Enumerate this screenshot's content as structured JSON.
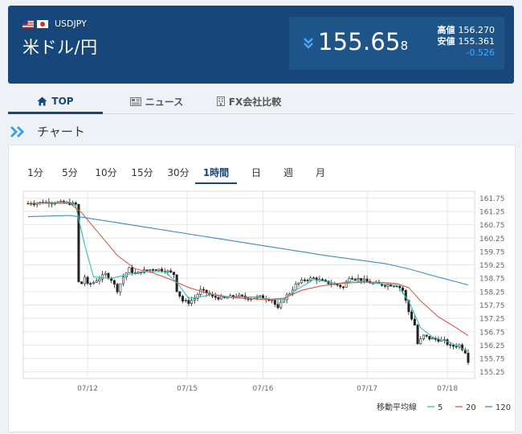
{
  "header": {
    "pair_code": "USDJPY",
    "pair_name": "米ドル/円",
    "price_main": "155.65",
    "price_small": "8",
    "high_label": "高値",
    "high_value": "156.270",
    "low_label": "安値",
    "low_value": "155.361",
    "change": "-0.526",
    "change_color": "#46a8ff",
    "brand_color": "#16467a"
  },
  "nav": {
    "items": [
      {
        "label": "TOP",
        "icon": "home-icon"
      },
      {
        "label": "ニュース",
        "icon": "newspaper-icon"
      },
      {
        "label": "FX会社比較",
        "icon": "building-icon"
      }
    ],
    "active": 0
  },
  "section": {
    "title": "チャート",
    "icon": "double-chevron-icon"
  },
  "tabs": {
    "items": [
      "1分",
      "5分",
      "10分",
      "15分",
      "30分",
      "1時間",
      "日",
      "週",
      "月"
    ],
    "active": 5
  },
  "chart_data": {
    "type": "candlestick",
    "x_labels": [
      "07/12",
      "07/15",
      "07/16",
      "07/17",
      "07/18"
    ],
    "y_ticks": [
      155.25,
      155.75,
      156.25,
      156.75,
      157.25,
      157.75,
      158.25,
      158.75,
      159.25,
      159.75,
      160.25,
      160.75,
      161.25,
      161.75
    ],
    "ylim": [
      155.0,
      162.0
    ],
    "grid": true,
    "close_path": [
      [
        0,
        161.55
      ],
      [
        8,
        161.6
      ],
      [
        14,
        161.55
      ],
      [
        16,
        161.5
      ],
      [
        17,
        158.6
      ],
      [
        18,
        158.55
      ],
      [
        19,
        158.8
      ],
      [
        20,
        158.5
      ],
      [
        22,
        158.6
      ],
      [
        26,
        158.9
      ],
      [
        28,
        158.7
      ],
      [
        30,
        158.3
      ],
      [
        32,
        158.8
      ],
      [
        34,
        159.1
      ],
      [
        36,
        158.9
      ],
      [
        38,
        159.0
      ],
      [
        42,
        159.1
      ],
      [
        46,
        159.05
      ],
      [
        49,
        158.9
      ],
      [
        50,
        158.3
      ],
      [
        52,
        157.9
      ],
      [
        54,
        157.85
      ],
      [
        56,
        158.0
      ],
      [
        58,
        158.3
      ],
      [
        60,
        158.2
      ],
      [
        62,
        158.05
      ],
      [
        66,
        158.0
      ],
      [
        70,
        158.1
      ],
      [
        74,
        158.0
      ],
      [
        78,
        158.05
      ],
      [
        82,
        157.95
      ],
      [
        84,
        157.6
      ],
      [
        86,
        158.0
      ],
      [
        88,
        158.2
      ],
      [
        90,
        158.5
      ],
      [
        93,
        158.7
      ],
      [
        96,
        158.75
      ],
      [
        100,
        158.6
      ],
      [
        104,
        158.5
      ],
      [
        106,
        158.4
      ],
      [
        108,
        158.8
      ],
      [
        112,
        158.7
      ],
      [
        116,
        158.55
      ],
      [
        120,
        158.5
      ],
      [
        124,
        158.5
      ],
      [
        126,
        158.3
      ],
      [
        128,
        157.5
      ],
      [
        130,
        157.0
      ],
      [
        131,
        156.3
      ],
      [
        133,
        156.6
      ],
      [
        135,
        156.5
      ],
      [
        138,
        156.45
      ],
      [
        140,
        156.4
      ],
      [
        142,
        156.2
      ],
      [
        145,
        156.25
      ],
      [
        147,
        156.0
      ],
      [
        148,
        155.66
      ]
    ],
    "series": [
      {
        "name": "5",
        "color": "#2fc1b0",
        "values": [
          [
            0,
            161.55
          ],
          [
            14,
            161.6
          ],
          [
            16,
            161.45
          ],
          [
            19,
            160.0
          ],
          [
            22,
            158.8
          ],
          [
            28,
            158.75
          ],
          [
            34,
            158.9
          ],
          [
            40,
            159.0
          ],
          [
            46,
            159.0
          ],
          [
            50,
            158.6
          ],
          [
            54,
            158.0
          ],
          [
            58,
            158.05
          ],
          [
            62,
            158.15
          ],
          [
            68,
            158.05
          ],
          [
            76,
            158.05
          ],
          [
            82,
            157.95
          ],
          [
            86,
            157.95
          ],
          [
            90,
            158.3
          ],
          [
            96,
            158.7
          ],
          [
            104,
            158.55
          ],
          [
            110,
            158.65
          ],
          [
            118,
            158.55
          ],
          [
            124,
            158.5
          ],
          [
            128,
            157.9
          ],
          [
            132,
            156.9
          ],
          [
            136,
            156.55
          ],
          [
            142,
            156.35
          ],
          [
            148,
            156.0
          ]
        ]
      },
      {
        "name": "20",
        "color": "#d65a4e",
        "values": [
          [
            0,
            161.55
          ],
          [
            14,
            161.55
          ],
          [
            18,
            161.2
          ],
          [
            24,
            160.4
          ],
          [
            30,
            159.6
          ],
          [
            36,
            159.1
          ],
          [
            42,
            158.95
          ],
          [
            48,
            158.7
          ],
          [
            54,
            158.4
          ],
          [
            60,
            158.2
          ],
          [
            66,
            158.05
          ],
          [
            72,
            158.0
          ],
          [
            80,
            157.95
          ],
          [
            86,
            158.0
          ],
          [
            92,
            158.3
          ],
          [
            98,
            158.45
          ],
          [
            104,
            158.55
          ],
          [
            112,
            158.6
          ],
          [
            118,
            158.6
          ],
          [
            124,
            158.55
          ],
          [
            128,
            158.4
          ],
          [
            132,
            157.9
          ],
          [
            138,
            157.3
          ],
          [
            144,
            156.9
          ],
          [
            148,
            156.6
          ]
        ]
      },
      {
        "name": "120",
        "color": "#3b89c9",
        "values": [
          [
            0,
            161.05
          ],
          [
            14,
            161.1
          ],
          [
            20,
            161.0
          ],
          [
            40,
            160.65
          ],
          [
            60,
            160.3
          ],
          [
            80,
            159.95
          ],
          [
            100,
            159.6
          ],
          [
            120,
            159.3
          ],
          [
            128,
            159.1
          ],
          [
            136,
            158.85
          ],
          [
            148,
            158.5
          ]
        ]
      }
    ],
    "legend": {
      "label": "移動平均線",
      "items": [
        "5",
        "20",
        "120"
      ]
    }
  }
}
